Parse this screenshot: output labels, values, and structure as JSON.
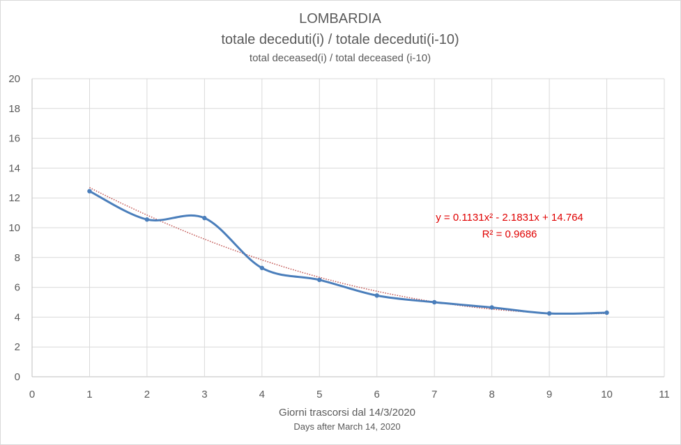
{
  "chart_data": {
    "type": "line",
    "title": "LOMBARDIA",
    "subtitle": "totale deceduti(i) / totale deceduti(i-10)",
    "subtitle_en": "total deceased(i) / total deceased (i-10)",
    "xlabel": "Giorni trascorsi dal 14/3/2020",
    "xlabel_en": "Days after March 14, 2020",
    "ylabel": "",
    "xlim": [
      0,
      11
    ],
    "ylim": [
      0,
      20
    ],
    "x_ticks": [
      0,
      1,
      2,
      3,
      4,
      5,
      6,
      7,
      8,
      9,
      10,
      11
    ],
    "y_ticks": [
      0,
      2,
      4,
      6,
      8,
      10,
      12,
      14,
      16,
      18,
      20
    ],
    "grid": true,
    "legend": "none",
    "series": [
      {
        "style": "smoothed-line-with-markers",
        "color": "#4a7ebb",
        "x": [
          1,
          2,
          3,
          4,
          5,
          6,
          7,
          8,
          9,
          10
        ],
        "y": [
          12.45,
          10.55,
          10.65,
          7.3,
          6.5,
          5.45,
          5.0,
          4.65,
          4.25,
          4.3
        ]
      }
    ],
    "trendline": {
      "type": "polynomial",
      "order": 2,
      "coefficients": [
        0.1131,
        -2.1831,
        14.764
      ],
      "x_range": [
        1,
        10
      ],
      "color": "#c0504d",
      "style": "dotted",
      "equation_label": "y = 0.1131x² - 2.1831x + 14.764",
      "r2_label": "R² = 0.9686"
    }
  }
}
